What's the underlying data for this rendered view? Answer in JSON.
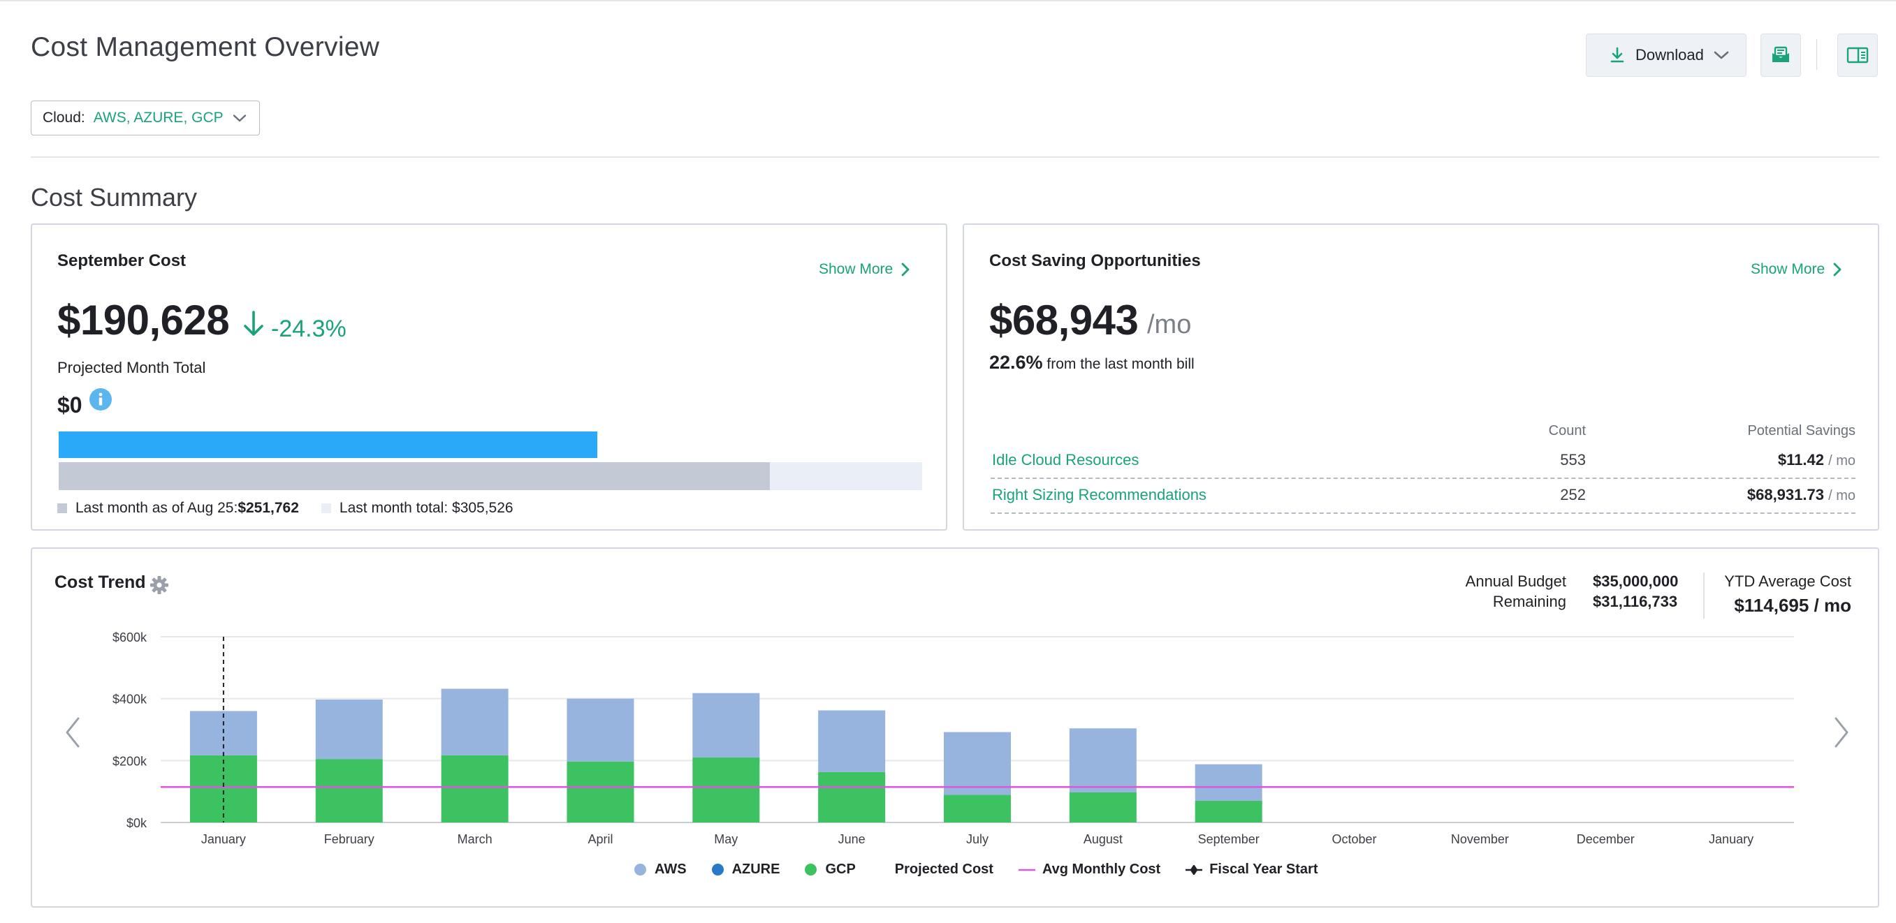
{
  "page": {
    "title": "Cost Management Overview"
  },
  "toolbar": {
    "download_label": "Download",
    "icons": [
      "download-icon",
      "chevron-down-icon",
      "email-report-icon",
      "panel-toggle-icon"
    ]
  },
  "filter": {
    "label": "Cloud:",
    "value": "AWS, AZURE, GCP"
  },
  "summary": {
    "section_title": "Cost Summary",
    "september": {
      "title": "September Cost",
      "show_more": "Show More",
      "amount": "$190,628",
      "change": "-24.3%",
      "projected_label": "Projected Month Total",
      "projected_value": "$0",
      "current_fraction": 0.6234,
      "last_month_fraction": 0.8236,
      "legend_asof_prefix": "Last month as of Aug 25: ",
      "legend_asof_value": "$251,762",
      "legend_total": "Last month total: $305,526"
    },
    "savings": {
      "title": "Cost Saving Opportunities",
      "show_more": "Show More",
      "amount": "$68,943",
      "per": "/mo",
      "pct": "22.6%",
      "pct_suffix": " from the last month bill",
      "col_count": "Count",
      "col_savings": "Potential Savings",
      "rows": [
        {
          "name": "Idle Cloud Resources",
          "count": "553",
          "savings": "$11.42",
          "unit": "/ mo"
        },
        {
          "name": "Right Sizing Recommendations",
          "count": "252",
          "savings": "$68,931.73",
          "unit": "/ mo"
        }
      ]
    }
  },
  "trend": {
    "title": "Cost Trend",
    "annual_budget_label": "Annual Budget",
    "annual_budget_value": "$35,000,000",
    "remaining_label": "Remaining",
    "remaining_value": "$31,116,733",
    "ytd_label": "YTD Average Cost",
    "ytd_value": "$114,695 / mo"
  },
  "colors": {
    "accent": "#1aa37a",
    "aws": "#97b4de",
    "azure": "#2979c9",
    "gcp": "#3cc261",
    "avg_line": "#d95ad9",
    "progress": "#29a9f8"
  },
  "chart_data": {
    "type": "bar",
    "stacked": true,
    "categories": [
      "January",
      "February",
      "March",
      "April",
      "May",
      "June",
      "July",
      "August",
      "September",
      "October",
      "November",
      "December",
      "January"
    ],
    "series": [
      {
        "name": "AWS",
        "values": [
          143000,
          192000,
          215000,
          203000,
          208000,
          199000,
          203000,
          207000,
          118000,
          null,
          null,
          null,
          null
        ]
      },
      {
        "name": "AZURE",
        "values": [
          0,
          0,
          0,
          0,
          0,
          0,
          0,
          0,
          0,
          null,
          null,
          null,
          null
        ]
      },
      {
        "name": "GCP",
        "values": [
          217000,
          205000,
          217000,
          197000,
          210000,
          163000,
          89000,
          97000,
          70000,
          null,
          null,
          null,
          null
        ]
      }
    ],
    "avg_monthly_cost": 114695,
    "fiscal_year_start": "January",
    "legend": [
      "AWS",
      "AZURE",
      "GCP",
      "Projected Cost",
      "Avg Monthly Cost",
      "Fiscal Year Start"
    ],
    "yticks": [
      "$0k",
      "$200k",
      "$400k",
      "$600k"
    ],
    "ylim": [
      0,
      600000
    ],
    "grid": true,
    "legend_position": "bottom"
  }
}
